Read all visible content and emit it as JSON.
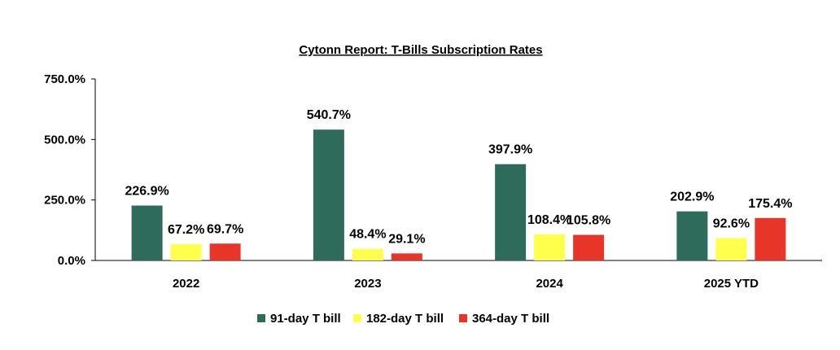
{
  "chart_data": {
    "type": "bar",
    "title": "Cytonn Report: T-Bills Subscription Rates",
    "categories": [
      "2022",
      "2023",
      "2024",
      "2025 YTD"
    ],
    "series": [
      {
        "name": "91-day T bill",
        "color": "#2e6b5a",
        "values": [
          226.9,
          540.7,
          397.9,
          202.9
        ],
        "labels": [
          "226.9%",
          "540.7%",
          "397.9%",
          "202.9%"
        ]
      },
      {
        "name": "182-day T bill",
        "color": "#ffff4d",
        "values": [
          67.2,
          48.4,
          108.4,
          92.6
        ],
        "labels": [
          "67.2%",
          "48.4%",
          "108.4%",
          "92.6%"
        ]
      },
      {
        "name": "364-day T bill",
        "color": "#e8352a",
        "values": [
          69.7,
          29.1,
          105.8,
          175.4
        ],
        "labels": [
          "69.7%",
          "29.1%",
          "105.8%",
          "175.4%"
        ]
      }
    ],
    "ylim": [
      0,
      750
    ],
    "yticks": [
      0,
      250,
      500,
      750
    ],
    "ytick_labels": [
      "0.0%",
      "250.0%",
      "500.0%",
      "750.0%"
    ],
    "legend_position": "bottom",
    "grid": false
  }
}
